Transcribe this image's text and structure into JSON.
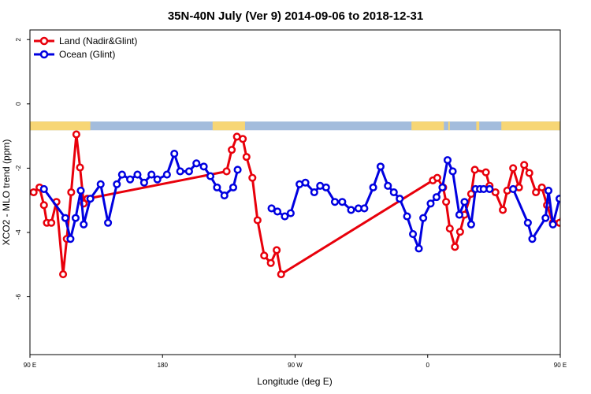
{
  "chart_data": {
    "type": "line",
    "title": "35N-40N July (Ver 9)   2014-09-06 to 2018-12-31",
    "xlabel": "Longitude (deg E)",
    "ylabel": "XCO2 - MLO trend (ppm)",
    "xlim": [
      90,
      450
    ],
    "ylim": [
      -7.8,
      2.3
    ],
    "x_ticks": [
      {
        "value": 90,
        "label": "90 E"
      },
      {
        "value": 180,
        "label": "180"
      },
      {
        "value": 270,
        "label": "90 W"
      },
      {
        "value": 360,
        "label": "0"
      },
      {
        "value": 450,
        "label": "90 E"
      },
      {
        "value": 540,
        "label": "180"
      }
    ],
    "y_ticks": [
      {
        "value": 2,
        "label": "2"
      },
      {
        "value": 0,
        "label": "0"
      },
      {
        "value": -2,
        "label": "-2"
      },
      {
        "value": -4,
        "label": "-4"
      },
      {
        "value": -6,
        "label": "-6"
      }
    ],
    "legend_position": "top-left",
    "land_band": {
      "y_top": -0.55,
      "y_bottom": -0.82,
      "ocean_color": "#a3bcdc",
      "land_color": "#f7d675",
      "land_ranges": [
        [
          90,
          131
        ],
        [
          214,
          236
        ],
        [
          349,
          371
        ],
        [
          374,
          375
        ],
        [
          393,
          395
        ],
        [
          410,
          507
        ]
      ]
    },
    "series": [
      {
        "name": "Land (Nadir&Glint)",
        "color": "#e8000b",
        "x": [
          92.5,
          96.5,
          99.5,
          101.5,
          104.5,
          108,
          112.5,
          115,
          118,
          121.5,
          124,
          126.5,
          129,
          223.5,
          227,
          230.5,
          234.5,
          237,
          241,
          244.5,
          249,
          253.5,
          257.5,
          260.5,
          363.5,
          366.5,
          370.5,
          372.5,
          375,
          378.5,
          382,
          385,
          389.5,
          392,
          399.5,
          402,
          406,
          411,
          414,
          418,
          422,
          425.5,
          429,
          433.5,
          437.5,
          441,
          445,
          449.5,
          453.5,
          458,
          461.5,
          465.5,
          469,
          472.5,
          476,
          480.5
        ],
        "y": [
          -2.75,
          -2.6,
          -3.15,
          -3.7,
          -3.7,
          -3.05,
          -5.3,
          -4.2,
          -2.75,
          -0.95,
          -1.98,
          -3.1,
          -2.95,
          -2.1,
          -1.43,
          -1.02,
          -1.09,
          -1.65,
          -2.3,
          -3.62,
          -4.72,
          -4.95,
          -4.55,
          -5.3,
          -2.38,
          -2.3,
          -2.6,
          -3.05,
          -3.88,
          -4.45,
          -3.98,
          -3.45,
          -2.8,
          -2.05,
          -2.13,
          -2.55,
          -2.75,
          -3.3,
          -2.7,
          -2.0,
          -2.6,
          -1.9,
          -2.15,
          -2.75,
          -2.6,
          -3.15,
          -3.7,
          -3.7,
          -3.05,
          -5.3,
          -4.2,
          -2.75,
          -0.95,
          -1.98,
          -3.1,
          -2.95
        ]
      },
      {
        "name": "Ocean (Glint)",
        "color": "#0000e0",
        "segments": [
          {
            "x": [
              99.5,
              114,
              117.5,
              121,
              124.5,
              126.5,
              131,
              138,
              143,
              149,
              152.5,
              158,
              163,
              167.5,
              172.5,
              176.5,
              183,
              188,
              192,
              198,
              203,
              208,
              212.5,
              217,
              222,
              228,
              231
            ],
            "y": [
              -2.65,
              -3.55,
              -4.2,
              -3.55,
              -2.7,
              -3.75,
              -2.95,
              -2.5,
              -3.7,
              -2.5,
              -2.2,
              -2.35,
              -2.2,
              -2.45,
              -2.2,
              -2.35,
              -2.2,
              -1.55,
              -2.1,
              -2.1,
              -1.85,
              -1.95,
              -2.25,
              -2.6,
              -2.85,
              -2.6,
              -2.05
            ]
          },
          {
            "x": [
              254,
              258,
              263,
              267,
              273,
              277,
              283,
              287,
              291,
              297,
              302,
              308,
              313,
              317,
              323,
              328,
              333,
              337,
              341,
              346,
              350,
              354,
              357,
              362,
              366,
              370,
              373.5,
              377,
              381.5,
              385,
              389.5,
              392.5,
              395.5,
              398,
              402
            ],
            "y": [
              -3.25,
              -3.35,
              -3.5,
              -3.4,
              -2.5,
              -2.45,
              -2.75,
              -2.55,
              -2.6,
              -3.05,
              -3.05,
              -3.3,
              -3.25,
              -3.25,
              -2.6,
              -1.95,
              -2.55,
              -2.75,
              -2.95,
              -3.5,
              -4.05,
              -4.5,
              -3.55,
              -3.1,
              -2.9,
              -2.6,
              -1.75,
              -2.1,
              -3.45,
              -3.05,
              -3.75,
              -2.65,
              -2.65,
              -2.65,
              -2.65
            ]
          },
          {
            "x": [
              418,
              428,
              431,
              440,
              442,
              445,
              449.5
            ],
            "y": [
              -2.65,
              -3.7,
              -4.2,
              -3.55,
              -2.7,
              -3.75,
              -2.95
            ]
          }
        ]
      }
    ]
  }
}
